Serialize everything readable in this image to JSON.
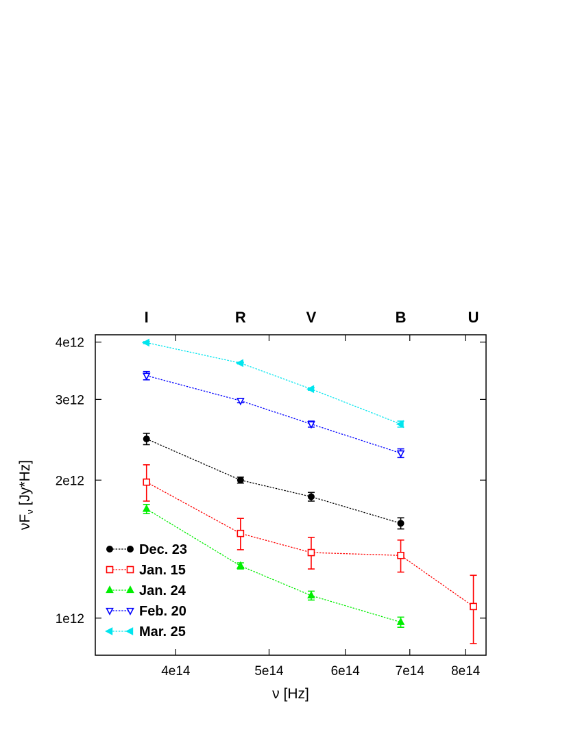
{
  "chart_data": {
    "type": "line",
    "xlabel": "ν [Hz]",
    "ylabel": "νF_ν [Jy*Hz]",
    "ylabel_main": "νF",
    "ylabel_sub": "ν",
    "ylabel_tail": " [Jy*Hz]",
    "x_scale": "log",
    "y_scale": "log",
    "xlim": [
      330000000000000,
      840000000000000
    ],
    "ylim": [
      830000000000,
      4150000000000
    ],
    "x_ticks": [
      {
        "value": 400000000000000,
        "label": "4e14"
      },
      {
        "value": 500000000000000,
        "label": "5e14"
      },
      {
        "value": 600000000000000,
        "label": "6e14"
      },
      {
        "value": 700000000000000,
        "label": "7e14"
      },
      {
        "value": 800000000000000,
        "label": "8e14"
      }
    ],
    "y_ticks": [
      {
        "value": 1000000000000,
        "label": "1e12"
      },
      {
        "value": 2000000000000,
        "label": "2e12"
      },
      {
        "value": 3000000000000,
        "label": "3e12"
      },
      {
        "value": 4000000000000,
        "label": "4e12"
      }
    ],
    "bands": [
      {
        "label": "I",
        "x": 373000000000000
      },
      {
        "label": "R",
        "x": 467000000000000
      },
      {
        "label": "V",
        "x": 553000000000000
      },
      {
        "label": "B",
        "x": 685000000000000
      },
      {
        "label": "U",
        "x": 815000000000000
      }
    ],
    "grid": false,
    "legend_position": "bottom-left",
    "series": [
      {
        "name": "Dec. 23",
        "color": "#000000",
        "marker": "filled-circle",
        "points": [
          {
            "x": 373000000000000,
            "y": 2460000000000,
            "err": 70000000000
          },
          {
            "x": 467000000000000,
            "y": 2000000000000,
            "err": 30000000000
          },
          {
            "x": 553000000000000,
            "y": 1840000000000,
            "err": 40000000000
          },
          {
            "x": 685000000000000,
            "y": 1610000000000,
            "err": 45000000000
          }
        ]
      },
      {
        "name": "Jan. 15",
        "color": "#ff0000",
        "marker": "open-square",
        "points": [
          {
            "x": 373000000000000,
            "y": 1980000000000,
            "err": 180000000000
          },
          {
            "x": 467000000000000,
            "y": 1530000000000,
            "err": 120000000000
          },
          {
            "x": 553000000000000,
            "y": 1390000000000,
            "err": 110000000000
          },
          {
            "x": 685000000000000,
            "y": 1370000000000,
            "err": 110000000000
          },
          {
            "x": 815000000000000,
            "y": 1060000000000,
            "err": 180000000000
          }
        ]
      },
      {
        "name": "Jan. 24",
        "color": "#00ee00",
        "marker": "filled-triangle-up",
        "points": [
          {
            "x": 373000000000000,
            "y": 1730000000000,
            "err": 40000000000
          },
          {
            "x": 467000000000000,
            "y": 1300000000000,
            "err": 20000000000
          },
          {
            "x": 553000000000000,
            "y": 1120000000000,
            "err": 25000000000
          },
          {
            "x": 685000000000000,
            "y": 980000000000,
            "err": 25000000000
          }
        ]
      },
      {
        "name": "Feb. 20",
        "color": "#0000ff",
        "marker": "open-triangle-down",
        "points": [
          {
            "x": 373000000000000,
            "y": 3380000000000,
            "err": 70000000000
          },
          {
            "x": 467000000000000,
            "y": 2980000000000,
            "err": 30000000000
          },
          {
            "x": 553000000000000,
            "y": 2650000000000,
            "err": 40000000000
          },
          {
            "x": 685000000000000,
            "y": 2290000000000,
            "err": 50000000000
          }
        ]
      },
      {
        "name": "Mar. 25",
        "color": "#00e5ee",
        "marker": "filled-triangle-left",
        "points": [
          {
            "x": 373000000000000,
            "y": 3990000000000,
            "err": 20000000000
          },
          {
            "x": 467000000000000,
            "y": 3600000000000,
            "err": 15000000000
          },
          {
            "x": 553000000000000,
            "y": 3160000000000,
            "err": 20000000000
          },
          {
            "x": 685000000000000,
            "y": 2650000000000,
            "err": 40000000000
          }
        ]
      }
    ]
  }
}
